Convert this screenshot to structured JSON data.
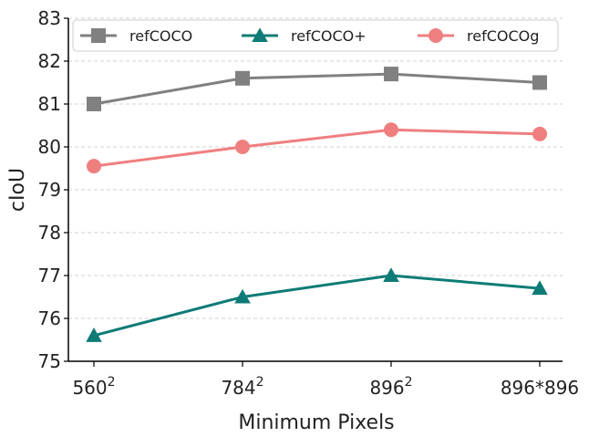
{
  "chart_data": {
    "type": "line",
    "title": "",
    "xlabel": "Minimum Pixels",
    "ylabel": "cIoU",
    "categories": [
      {
        "base": "560",
        "sup": "2"
      },
      {
        "base": "784",
        "sup": "2"
      },
      {
        "base": "896",
        "sup": "2"
      },
      {
        "base": "896*896",
        "sup": ""
      }
    ],
    "ylim": [
      75,
      83
    ],
    "yticks": [
      75,
      76,
      77,
      78,
      79,
      80,
      81,
      82,
      83
    ],
    "grid": "horizontal dashed",
    "legend_position": "top",
    "series": [
      {
        "name": "refCOCO",
        "marker": "square",
        "color": "#808080",
        "values": [
          81.0,
          81.6,
          81.7,
          81.5
        ]
      },
      {
        "name": "refCOCO+",
        "marker": "triangle",
        "color": "#0f7b76",
        "values": [
          75.6,
          76.5,
          77.0,
          76.7
        ]
      },
      {
        "name": "refCOCOg",
        "marker": "circle",
        "color": "#ef7f7f",
        "values": [
          79.55,
          80.0,
          80.4,
          80.3
        ]
      }
    ]
  }
}
